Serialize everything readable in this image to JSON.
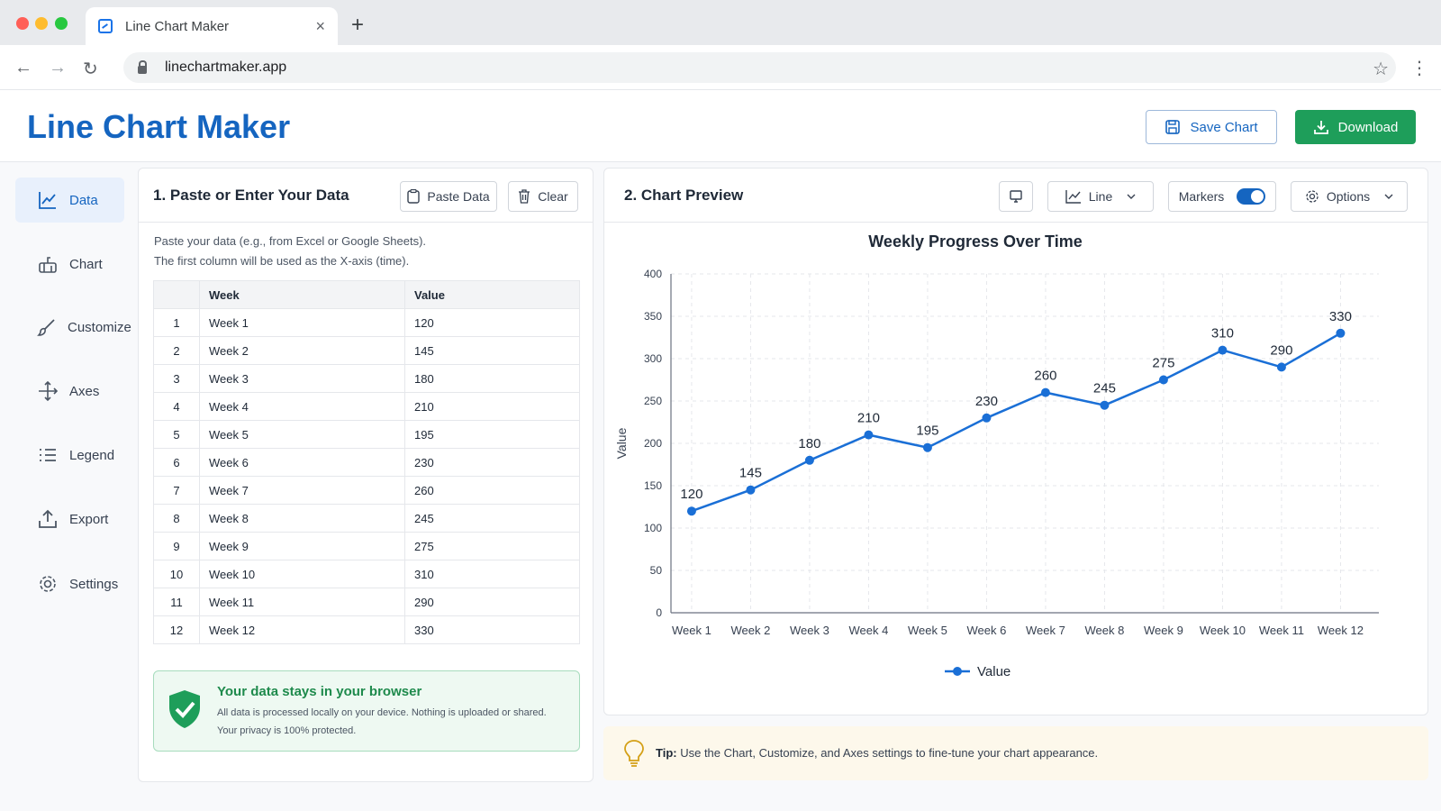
{
  "browser": {
    "tab_title": "Line Chart Maker",
    "tab_close": "×",
    "new_tab": "+",
    "url": "linechartmaker.app"
  },
  "header": {
    "title": "Line Chart Maker",
    "save_label": "Save Chart",
    "download_label": "Download"
  },
  "sidebar": {
    "items": [
      {
        "label": "Data",
        "icon": "line-chart-icon"
      },
      {
        "label": "Chart",
        "icon": "chart-icon"
      },
      {
        "label": "Customize",
        "icon": "brush-icon"
      },
      {
        "label": "Axes",
        "icon": "axes-icon"
      },
      {
        "label": "Legend",
        "icon": "list-icon"
      },
      {
        "label": "Export",
        "icon": "export-icon"
      },
      {
        "label": "Settings",
        "icon": "gear-icon"
      }
    ]
  },
  "data_panel": {
    "title": "1.  Paste or Enter Your Data",
    "paste_label": "Paste Data",
    "clear_label": "Clear",
    "instructions_1": "Paste your data (e.g., from Excel or Google Sheets).",
    "instructions_2": "The first column will be used as the X-axis (time).",
    "columns": [
      "",
      "Week",
      "Value"
    ],
    "rows": [
      [
        "1",
        "Week 1",
        "120"
      ],
      [
        "2",
        "Week 2",
        "145"
      ],
      [
        "3",
        "Week 3",
        "180"
      ],
      [
        "4",
        "Week 4",
        "210"
      ],
      [
        "5",
        "Week 5",
        "195"
      ],
      [
        "6",
        "Week 6",
        "230"
      ],
      [
        "7",
        "Week 7",
        "260"
      ],
      [
        "8",
        "Week 8",
        "245"
      ],
      [
        "9",
        "Week 9",
        "275"
      ],
      [
        "10",
        "Week 10",
        "310"
      ],
      [
        "11",
        "Week 11",
        "290"
      ],
      [
        "12",
        "Week 12",
        "330"
      ]
    ],
    "privacy_title": "Your data stays in your browser",
    "privacy_text_1": "All data is processed locally on your device. Nothing is uploaded or shared.",
    "privacy_text_2": "Your privacy is 100% protected."
  },
  "chart_panel": {
    "title": "2.  Chart Preview",
    "type_label": "Line",
    "markers_label": "Markers",
    "markers_on": true,
    "options_label": "Options"
  },
  "tip": {
    "label": "Tip:",
    "text": "Use the Chart, Customize, and Axes settings to fine-tune your chart appearance."
  },
  "colors": {
    "accent": "#1565c0",
    "line": "#1a6fd6",
    "download": "#1e9e5a"
  },
  "chart_data": {
    "type": "line",
    "title": "Weekly Progress Over Time",
    "xlabel": "",
    "ylabel": "Value",
    "categories": [
      "Week 1",
      "Week 2",
      "Week 3",
      "Week 4",
      "Week 5",
      "Week 6",
      "Week 7",
      "Week 8",
      "Week 9",
      "Week 10",
      "Week 11",
      "Week 12"
    ],
    "series": [
      {
        "name": "Value",
        "values": [
          120,
          145,
          180,
          210,
          195,
          230,
          260,
          245,
          275,
          310,
          290,
          330
        ]
      }
    ],
    "ylim": [
      0,
      400
    ],
    "yticks": [
      "0",
      "50",
      "100",
      "150",
      "200",
      "250",
      "300",
      "350",
      "400"
    ],
    "grid": true,
    "markers": true,
    "data_labels": true,
    "legend": "bottom"
  }
}
